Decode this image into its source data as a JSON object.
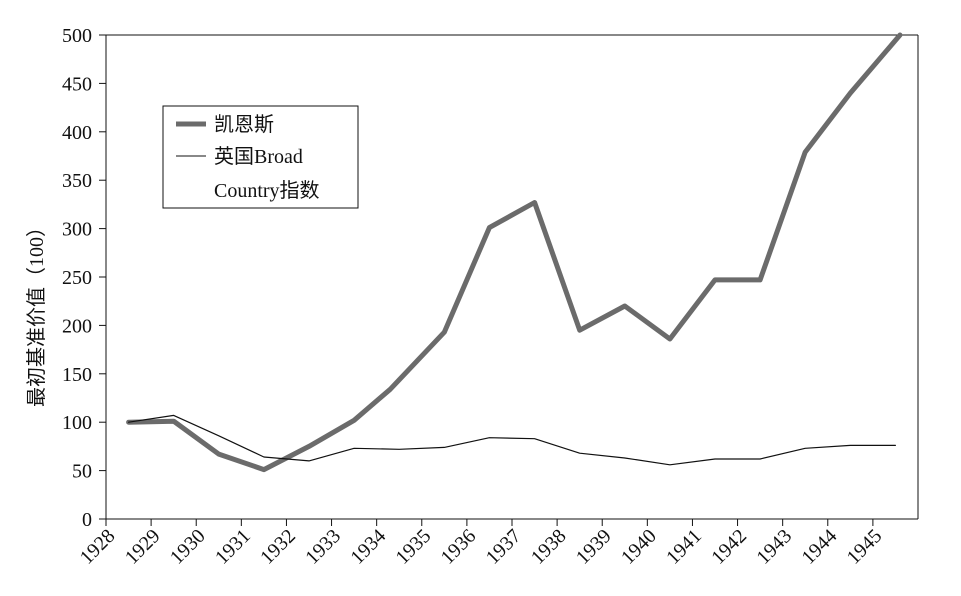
{
  "chart_data": {
    "type": "line",
    "title": "",
    "xlabel": "",
    "ylabel": "最初基准价值（100）",
    "ylim": [
      0,
      500
    ],
    "yticks": [
      0,
      50,
      100,
      150,
      200,
      250,
      300,
      350,
      400,
      450,
      500
    ],
    "xtick_labels": [
      "1928",
      "1929",
      "1930",
      "1931",
      "1932",
      "1933",
      "1934",
      "1935",
      "1936",
      "1937",
      "1938",
      "1939",
      "1940",
      "1941",
      "1942",
      "1943",
      "1944",
      "1945"
    ],
    "grid": false,
    "legend_position": "top-left",
    "series": [
      {
        "name": "凯恩斯",
        "color": "#6b6b6b",
        "style": "thick",
        "x": [
          1928.5,
          1929.5,
          1930.5,
          1931.5,
          1932.5,
          1933.5,
          1934.3,
          1935.5,
          1936.5,
          1937.5,
          1938.5,
          1939.5,
          1940.5,
          1941.5,
          1942.5,
          1943.5,
          1944.5,
          1945.6
        ],
        "values": [
          100,
          101,
          67,
          51,
          75,
          102,
          134,
          193,
          301,
          327,
          195,
          220,
          186,
          247,
          247,
          379,
          440,
          500
        ]
      },
      {
        "name": "英国Broad Country指数",
        "legend_lines": [
          "英国Broad",
          "Country指数"
        ],
        "color": "#111111",
        "style": "thin",
        "x": [
          1928.5,
          1929.5,
          1930.5,
          1931.5,
          1932.5,
          1933.5,
          1934.5,
          1935.5,
          1936.5,
          1937.5,
          1938.5,
          1939.5,
          1940.5,
          1941.5,
          1942.5,
          1943.5,
          1944.5,
          1945.5
        ],
        "values": [
          100,
          107,
          86,
          64,
          60,
          73,
          72,
          74,
          84,
          83,
          68,
          63,
          56,
          62,
          62,
          73,
          76,
          76
        ]
      }
    ]
  }
}
